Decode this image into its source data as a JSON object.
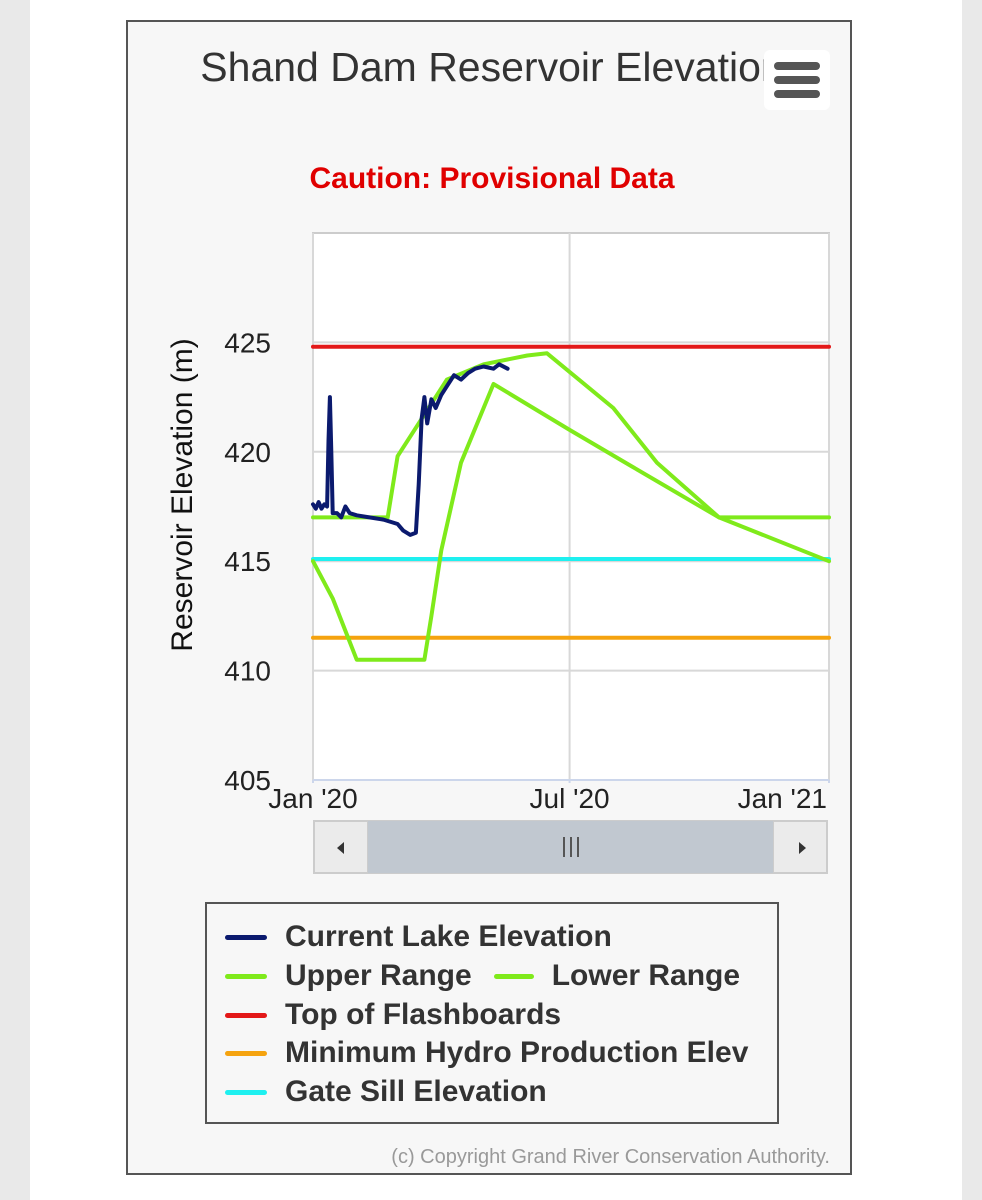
{
  "chart_data": {
    "type": "line",
    "title": "Shand Dam Reservoir Elevation",
    "subtitle": "Caution: Provisional Data",
    "xlabel": "",
    "ylabel": "Reservoir Elevation (m)",
    "xlim": [
      "2020-01-01",
      "2021-01-01"
    ],
    "ylim": [
      405,
      430
    ],
    "x_tick_labels": [
      {
        "date": "2020-01-01",
        "label": "Jan '20"
      },
      {
        "date": "2020-07-01",
        "label": "Jul '20"
      },
      {
        "date": "2021-01-01",
        "label": "Jan '21"
      }
    ],
    "y_ticks": [
      405,
      410,
      415,
      420,
      425
    ],
    "grid": true,
    "legend_position": "bottom",
    "series": [
      {
        "name": "Current Lake Elevation",
        "color": "#0b1a6e",
        "points": [
          [
            "2020-01-01",
            417.6
          ],
          [
            "2020-01-03",
            417.4
          ],
          [
            "2020-01-05",
            417.7
          ],
          [
            "2020-01-07",
            417.4
          ],
          [
            "2020-01-09",
            417.6
          ],
          [
            "2020-01-11",
            417.5
          ],
          [
            "2020-01-12",
            420.5
          ],
          [
            "2020-01-13",
            422.5
          ],
          [
            "2020-01-14",
            420.0
          ],
          [
            "2020-01-15",
            417.2
          ],
          [
            "2020-01-18",
            417.2
          ],
          [
            "2020-01-21",
            417.0
          ],
          [
            "2020-01-24",
            417.5
          ],
          [
            "2020-01-27",
            417.2
          ],
          [
            "2020-02-01",
            417.1
          ],
          [
            "2020-02-10",
            417.0
          ],
          [
            "2020-02-20",
            416.9
          ],
          [
            "2020-03-01",
            416.7
          ],
          [
            "2020-03-05",
            416.4
          ],
          [
            "2020-03-10",
            416.2
          ],
          [
            "2020-03-14",
            416.3
          ],
          [
            "2020-03-16",
            418.5
          ],
          [
            "2020-03-18",
            421.5
          ],
          [
            "2020-03-20",
            422.5
          ],
          [
            "2020-03-22",
            421.3
          ],
          [
            "2020-03-25",
            422.4
          ],
          [
            "2020-03-28",
            422.0
          ],
          [
            "2020-04-01",
            422.6
          ],
          [
            "2020-04-05",
            423.0
          ],
          [
            "2020-04-10",
            423.5
          ],
          [
            "2020-04-15",
            423.3
          ],
          [
            "2020-04-20",
            423.6
          ],
          [
            "2020-04-25",
            423.8
          ],
          [
            "2020-05-01",
            423.9
          ],
          [
            "2020-05-08",
            423.8
          ],
          [
            "2020-05-12",
            424.0
          ],
          [
            "2020-05-18",
            423.8
          ]
        ]
      },
      {
        "name": "Upper Range",
        "color": "#7fea1b",
        "points": [
          [
            "2020-01-01",
            417.0
          ],
          [
            "2020-02-23",
            417.0
          ],
          [
            "2020-03-01",
            419.8
          ],
          [
            "2020-03-20",
            421.7
          ],
          [
            "2020-04-05",
            423.3
          ],
          [
            "2020-05-01",
            424.0
          ],
          [
            "2020-06-01",
            424.4
          ],
          [
            "2020-06-15",
            424.5
          ],
          [
            "2020-08-01",
            422.0
          ],
          [
            "2020-09-01",
            419.5
          ],
          [
            "2020-10-15",
            417.0
          ],
          [
            "2021-01-01",
            417.0
          ]
        ]
      },
      {
        "name": "Lower Range",
        "color": "#7fea1b",
        "points": [
          [
            "2020-01-01",
            415.0
          ],
          [
            "2020-01-15",
            413.3
          ],
          [
            "2020-02-01",
            410.5
          ],
          [
            "2020-02-12",
            410.5
          ],
          [
            "2020-03-01",
            410.5
          ],
          [
            "2020-03-20",
            410.5
          ],
          [
            "2020-03-25",
            412.5
          ],
          [
            "2020-04-01",
            415.5
          ],
          [
            "2020-04-15",
            419.5
          ],
          [
            "2020-05-01",
            422.0
          ],
          [
            "2020-05-08",
            423.1
          ],
          [
            "2020-07-01",
            421.0
          ],
          [
            "2020-08-15",
            419.3
          ],
          [
            "2020-10-15",
            417.0
          ],
          [
            "2021-01-01",
            415.0
          ]
        ]
      },
      {
        "name": "Top of Flashboards",
        "color": "#e31818",
        "points": [
          [
            "2020-01-01",
            424.8
          ],
          [
            "2021-01-01",
            424.8
          ]
        ]
      },
      {
        "name": "Minimum Hydro Production Elev",
        "color": "#f5a30f",
        "points": [
          [
            "2020-01-01",
            411.5
          ],
          [
            "2021-01-01",
            411.5
          ]
        ]
      },
      {
        "name": "Gate Sill Elevation",
        "color": "#1ef0f0",
        "points": [
          [
            "2020-01-01",
            415.1
          ],
          [
            "2021-01-01",
            415.1
          ]
        ]
      }
    ]
  },
  "legend": {
    "row1": {
      "current": "Current Lake Elevation"
    },
    "row2": {
      "upper": "Upper Range",
      "lower": "Lower Range"
    },
    "row3": {
      "flash": "Top of Flashboards"
    },
    "row4": {
      "hydro": "Minimum Hydro Production Elev"
    },
    "row5": {
      "gate": "Gate Sill Elevation"
    }
  },
  "menu": {
    "icon": "hamburger-menu-icon"
  },
  "navigator": {
    "thumb_icon": "grip-lines-icon",
    "left_icon": "arrow-left-icon",
    "right_icon": "arrow-right-icon"
  },
  "credits": "(c) Copyright Grand River Conservation Authority."
}
